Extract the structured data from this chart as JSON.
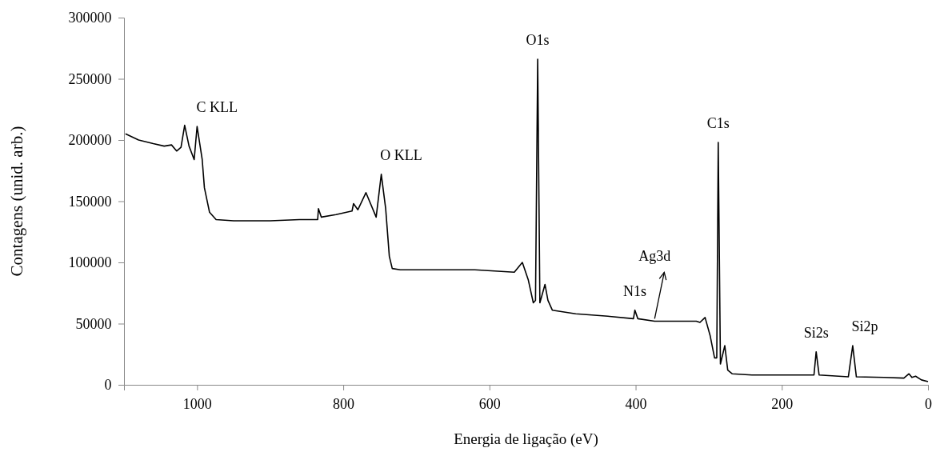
{
  "chart_data": {
    "type": "line",
    "xlabel": "Energia de ligação (eV)",
    "ylabel": "Contagens (unid. arb.)",
    "xlim": [
      1100,
      0
    ],
    "xticks": [
      1000,
      800,
      600,
      400,
      200,
      0
    ],
    "ylim": [
      0,
      300000
    ],
    "yticks": [
      0,
      50000,
      100000,
      150000,
      200000,
      250000,
      300000
    ],
    "grid": false,
    "marker": "none",
    "line_style": "solid",
    "series": [
      {
        "color": "#000000",
        "x": [
          1098,
          1080,
          1060,
          1045,
          1035,
          1028,
          1022,
          1017,
          1011,
          1004,
          1000,
          993,
          990,
          983,
          974,
          950,
          900,
          860,
          835,
          834,
          830,
          810,
          788,
          786,
          780,
          769,
          755,
          748,
          742,
          737,
          733,
          722,
          680,
          620,
          566,
          555,
          547,
          540,
          537,
          534,
          531,
          524,
          520,
          514,
          482,
          438,
          403,
          401,
          397,
          374,
          317,
          312,
          305,
          298,
          292,
          289,
          287,
          284,
          278,
          274,
          268,
          241,
          203,
          156,
          153,
          149,
          109,
          103,
          98,
          60,
          33,
          26,
          22,
          17,
          9,
          0
        ],
        "values": [
          205000,
          200000,
          197000,
          195000,
          196000,
          191000,
          194000,
          212000,
          195000,
          184000,
          211000,
          184000,
          161000,
          141000,
          135000,
          134000,
          134000,
          135000,
          135000,
          144000,
          137000,
          139000,
          142000,
          148000,
          143000,
          157000,
          137000,
          172000,
          144000,
          105000,
          95000,
          94000,
          94000,
          94000,
          92000,
          100000,
          86000,
          67000,
          69000,
          266000,
          67000,
          82000,
          69000,
          61000,
          58000,
          56000,
          54000,
          61000,
          54000,
          52000,
          52000,
          51000,
          55000,
          40000,
          22000,
          22000,
          198000,
          17000,
          32000,
          12000,
          9000,
          8000,
          8000,
          8000,
          27000,
          8000,
          6500,
          32000,
          6500,
          6000,
          5500,
          9000,
          6000,
          7000,
          4000,
          2600
        ]
      }
    ],
    "annotations": [
      {
        "text": "C KLL",
        "x": 1000,
        "y": 211000
      },
      {
        "text": "O KLL",
        "x": 748,
        "y": 172000
      },
      {
        "text": "O1s",
        "x": 534,
        "y": 266000
      },
      {
        "text": "C1s",
        "x": 287,
        "y": 198000
      },
      {
        "text": "N1s",
        "x": 401,
        "y": 61000
      },
      {
        "text": "Ag3d",
        "x": 374,
        "y": 52000
      },
      {
        "text": "Si2s",
        "x": 153,
        "y": 27000
      },
      {
        "text": "Si2p",
        "x": 103,
        "y": 32000
      }
    ]
  }
}
